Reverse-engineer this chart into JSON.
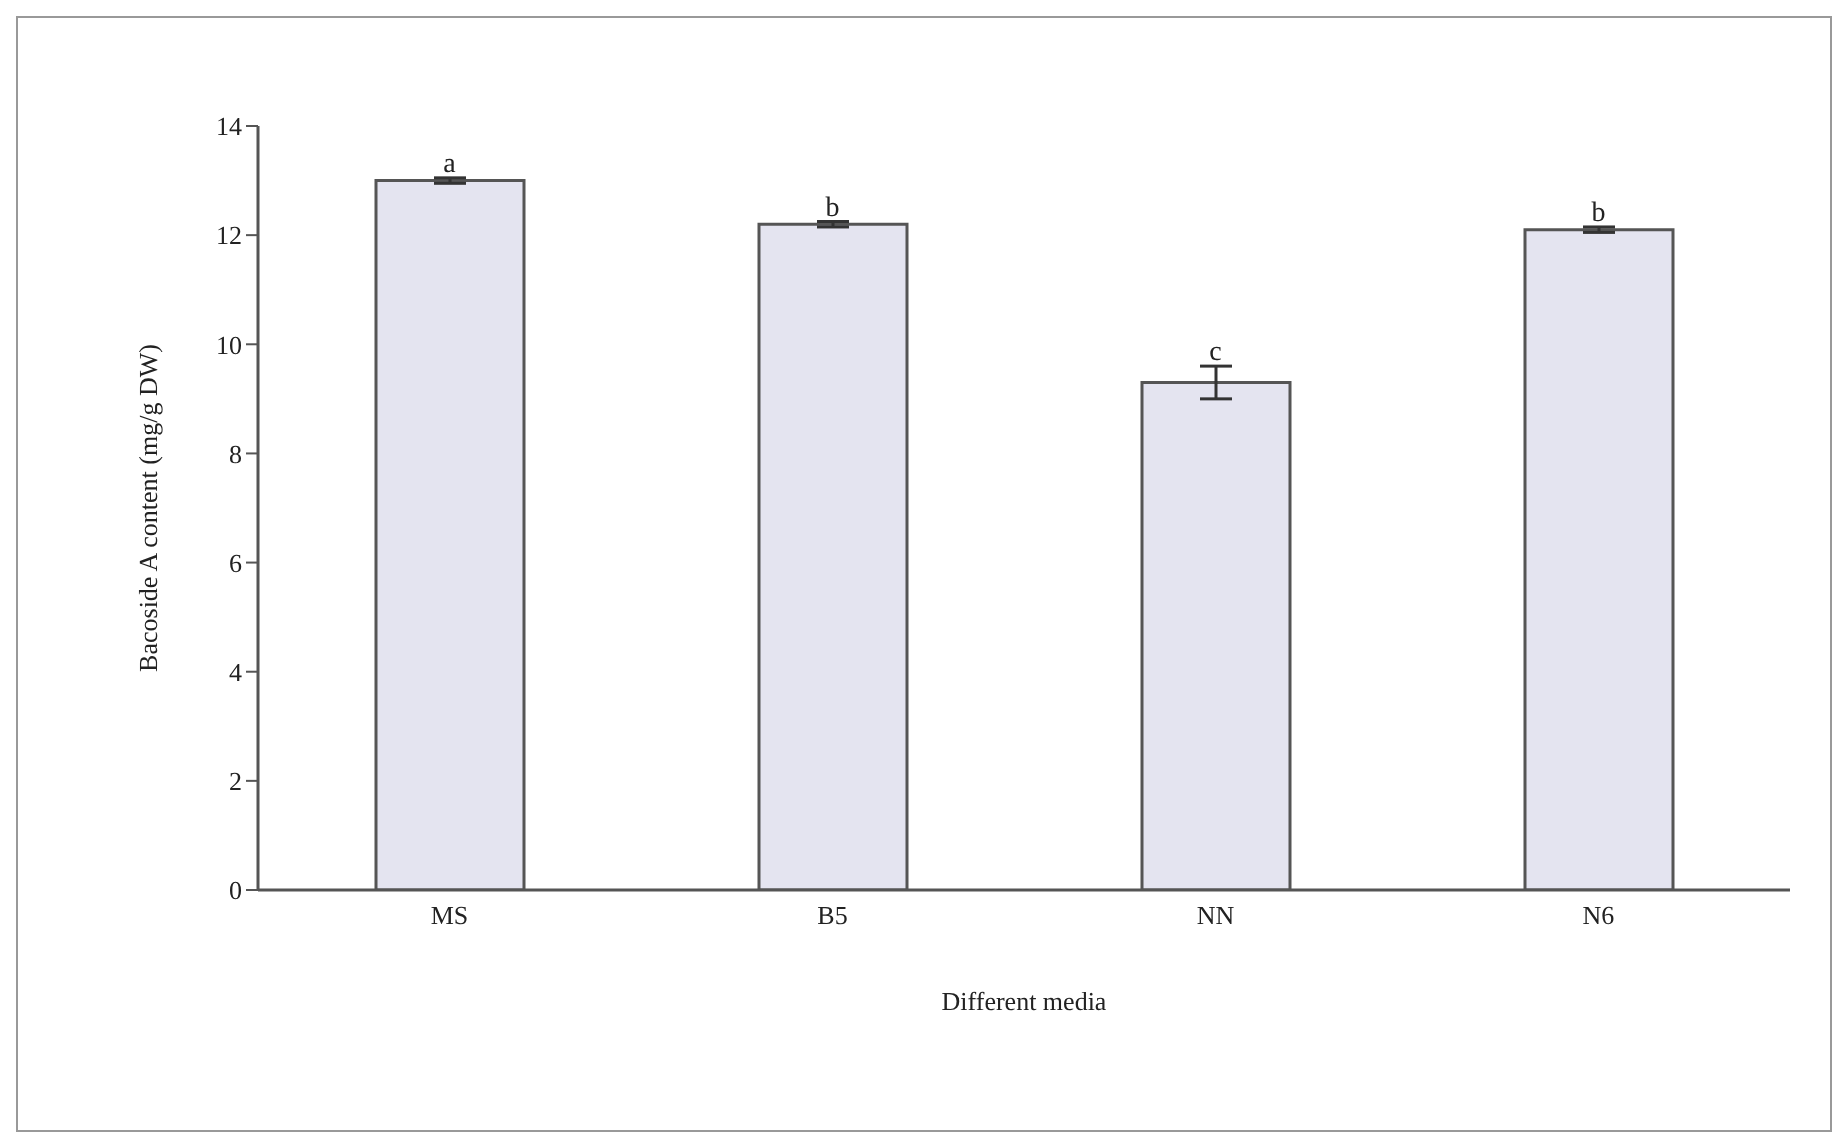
{
  "chart_data": {
    "type": "bar",
    "xlabel": "Different media",
    "ylabel": "Bacoside A content  (mg/g DW)",
    "categories": [
      "MS",
      "B5",
      "NN",
      "N6"
    ],
    "values": [
      13.0,
      12.2,
      9.3,
      12.1
    ],
    "errors": [
      0.05,
      0.05,
      0.3,
      0.05
    ],
    "color": "#e4e4f0",
    "ylim": [
      0,
      14
    ],
    "yticks": [
      0,
      2,
      4,
      6,
      8,
      10,
      12,
      14
    ],
    "grid": false,
    "legend": false,
    "annotations": [
      {
        "text": "a",
        "x": "MS",
        "y": 13.05
      },
      {
        "text": "b",
        "x": "B5",
        "y": 12.25
      },
      {
        "text": "c",
        "x": "NN",
        "y": 9.6
      },
      {
        "text": "b",
        "x": "N6",
        "y": 12.15
      }
    ]
  }
}
